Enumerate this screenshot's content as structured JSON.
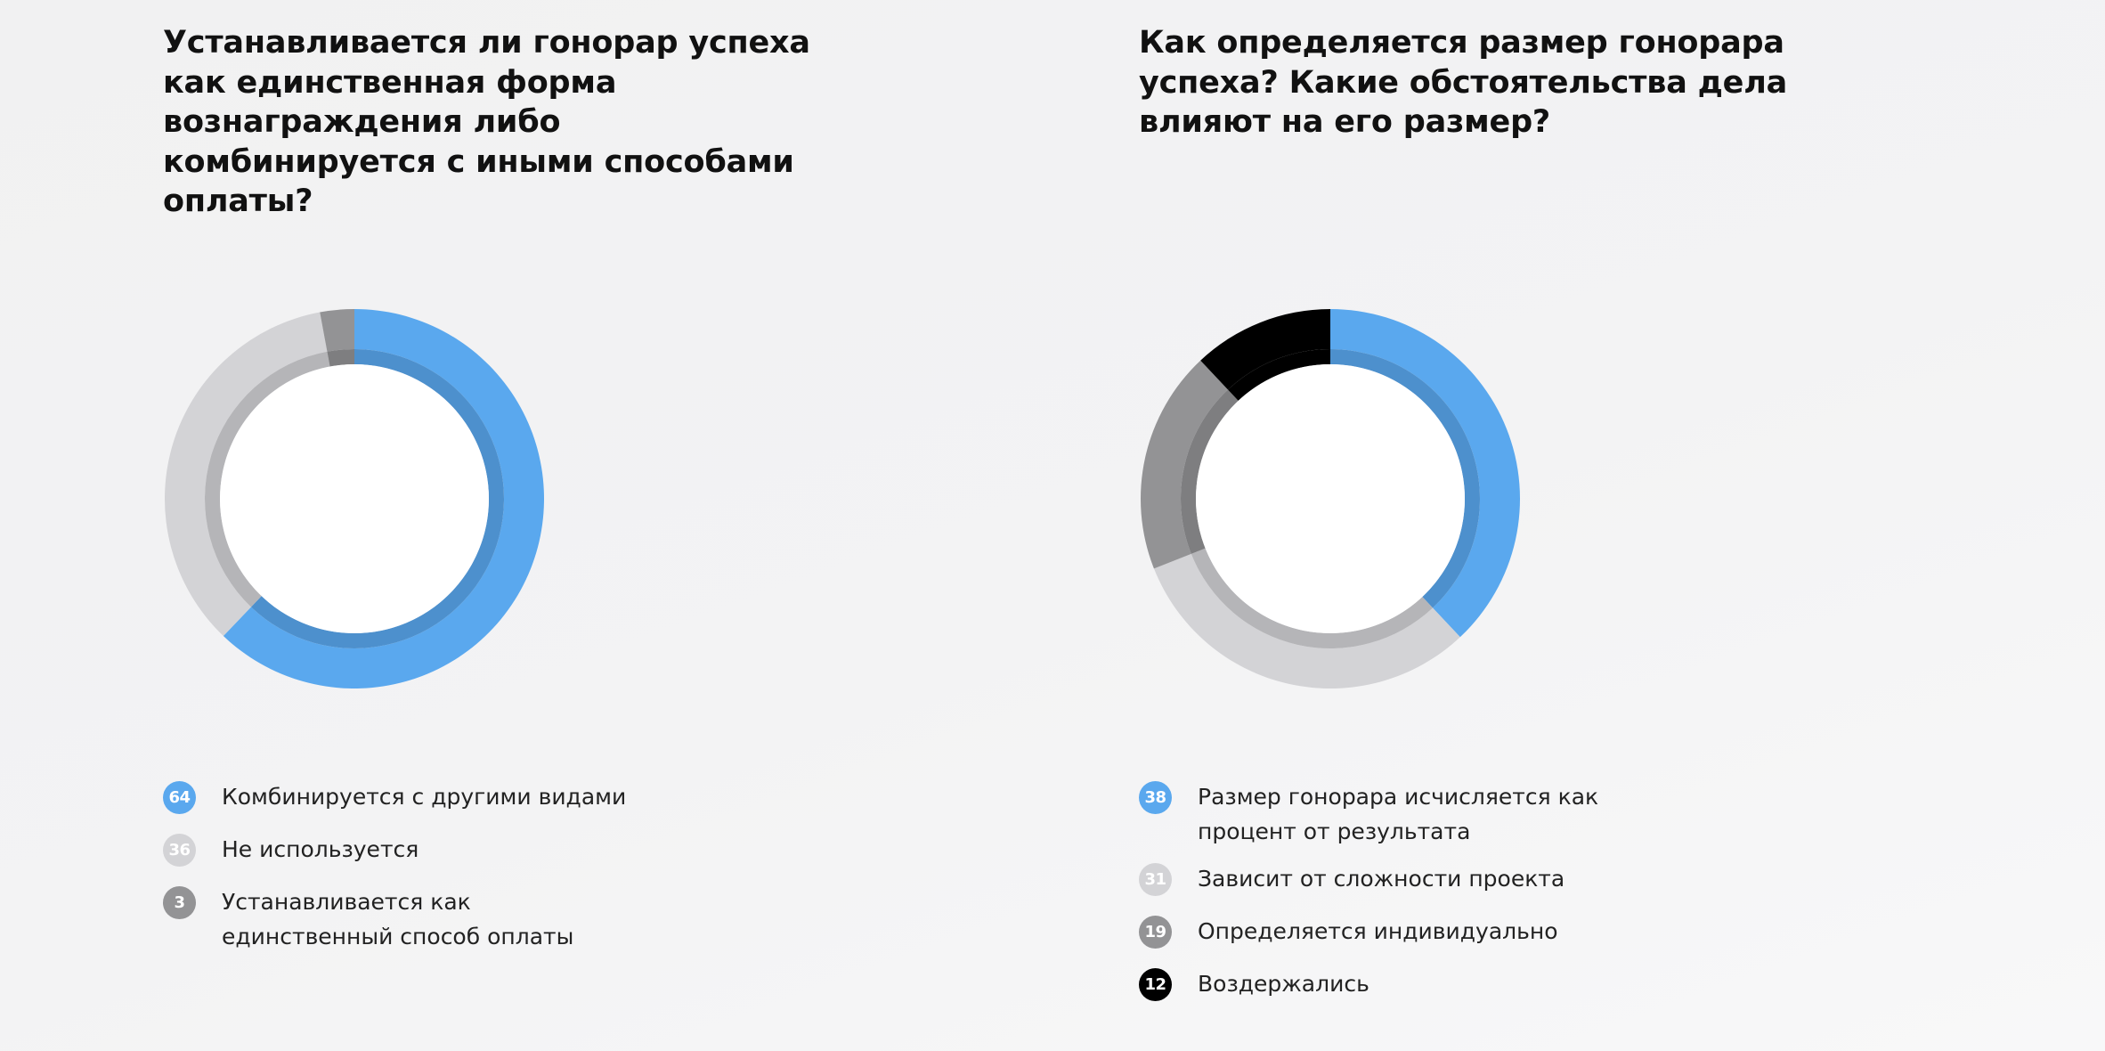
{
  "chart_data": [
    {
      "type": "pie",
      "title": "Устанавливается ли гонорар успеха как единственная форма вознаграждения либо комбинируется с иными способами оплаты?",
      "categories": [
        "Комбинируется с другими видами",
        "Не используется",
        "Устанавливается как единственный способ оплаты"
      ],
      "values": [
        64,
        36,
        3
      ],
      "colors": [
        "#5aa8ee",
        "#d3d3d6",
        "#939395"
      ],
      "legend": "bottom"
    },
    {
      "type": "pie",
      "title": "Как определяется размер гонорара успеха? Какие обстоятельства дела влияют на его размер?",
      "categories": [
        "Размер гонорара исчисляется как процент от результата",
        "Зависит от сложности проекта",
        "Определяется индивидуально",
        "Воздержались"
      ],
      "values": [
        38,
        31,
        19,
        12
      ],
      "colors": [
        "#5aa8ee",
        "#d3d3d6",
        "#939395",
        "#000000"
      ],
      "legend": "bottom"
    }
  ]
}
